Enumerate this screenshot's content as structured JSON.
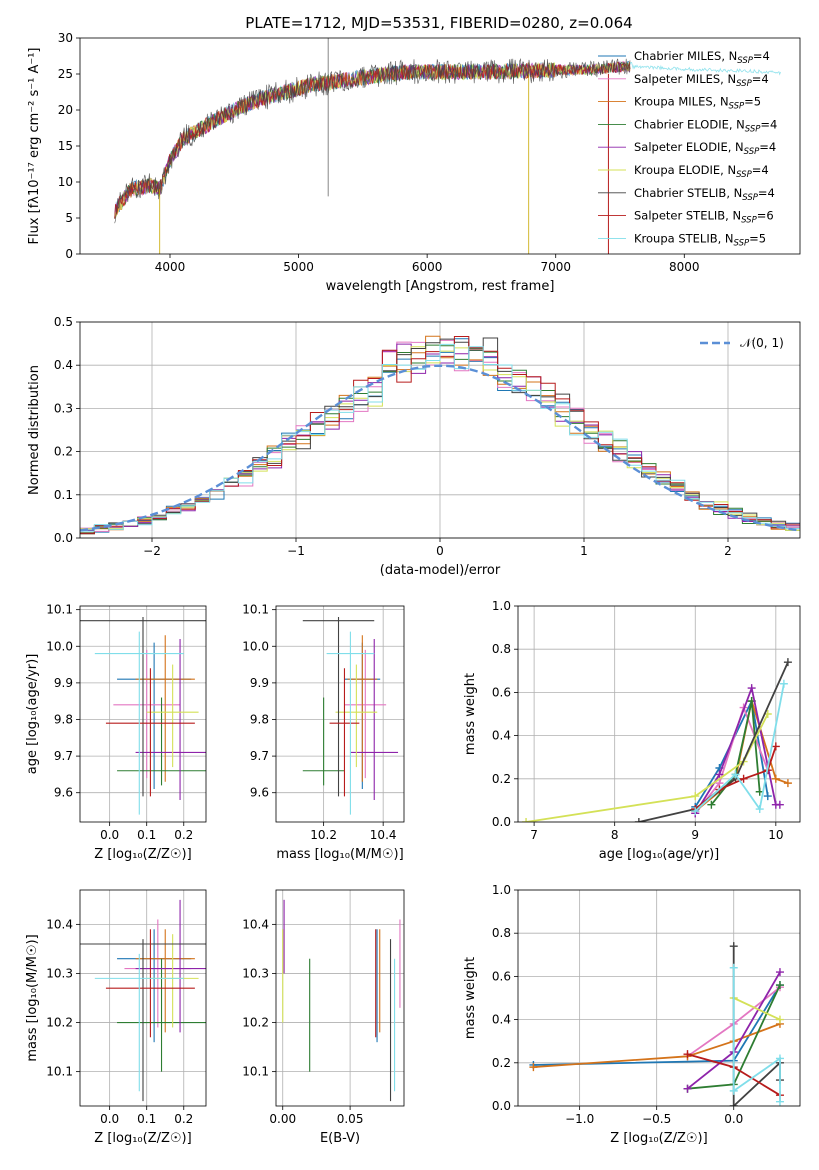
{
  "figure_title": "PLATE=1712, MJD=53531, FIBERID=0280, z=0.064",
  "series": [
    {
      "name": "Chabrier MILES",
      "nssp": "4",
      "color": "#1f77b4"
    },
    {
      "name": "Salpeter MILES",
      "nssp": "4",
      "color": "#e377c2"
    },
    {
      "name": "Kroupa MILES",
      "nssp": "5",
      "color": "#d4731a"
    },
    {
      "name": "Chabrier ELODIE",
      "nssp": "4",
      "color": "#2e7d32"
    },
    {
      "name": "Salpeter ELODIE",
      "nssp": "4",
      "color": "#8e24aa"
    },
    {
      "name": "Kroupa ELODIE",
      "nssp": "4",
      "color": "#d4e157"
    },
    {
      "name": "Chabrier STELIB",
      "nssp": "4",
      "color": "#424242"
    },
    {
      "name": "Salpeter STELIB",
      "nssp": "6",
      "color": "#b71c1c"
    },
    {
      "name": "Kroupa STELIB",
      "nssp": "5",
      "color": "#80deea"
    }
  ],
  "chart_data": [
    {
      "id": "spectrum",
      "type": "line",
      "xlabel": "wavelength [Angstrom, rest frame]",
      "ylabel": "Flux [fλ10⁻¹⁷ erg cm⁻² s⁻¹ A⁻¹]",
      "xlim": [
        3300,
        8900
      ],
      "ylim": [
        0,
        30
      ],
      "xticks": [
        4000,
        5000,
        6000,
        7000,
        8000
      ],
      "yticks": [
        0,
        5,
        10,
        15,
        20,
        25,
        30
      ],
      "grid": false,
      "legend": "upper right",
      "continuum": {
        "x": [
          3570,
          3700,
          3850,
          3920,
          4000,
          4100,
          4300,
          4500,
          4700,
          4900,
          5100,
          5300,
          5500,
          5700,
          5900,
          6100,
          6300,
          6500,
          6700,
          6900,
          7100,
          7300,
          7500,
          7700,
          7900,
          8100,
          8300,
          8500,
          8700
        ],
        "y": [
          6,
          9,
          9.5,
          9,
          13,
          16,
          18,
          20,
          21.5,
          22.5,
          23.5,
          24,
          24.5,
          25,
          25.3,
          25.3,
          25.3,
          25.3,
          25.4,
          25.5,
          25.6,
          25.6,
          26,
          26,
          25.8,
          25.6,
          25.5,
          25.4,
          25.2
        ]
      }
    },
    {
      "id": "residuals",
      "type": "histogram",
      "xlabel": "(data-model)/error",
      "ylabel": "Normed distribution",
      "xlim": [
        -2.5,
        2.5
      ],
      "ylim": [
        0,
        0.5
      ],
      "xticks": [
        -2,
        -1,
        0,
        1,
        2
      ],
      "yticks": [
        0,
        0.1,
        0.2,
        0.3,
        0.4,
        0.5
      ],
      "grid": true,
      "legend": "upper right",
      "reference_curve": {
        "name": "𝒩(0, 1)",
        "mean": 0,
        "sigma": 1,
        "color": "#5b8fd6"
      },
      "bin_width": 0.1
    },
    {
      "id": "age_vs_z",
      "type": "errorbar",
      "xlabel": "Z [log₁₀(Z/Z☉)]",
      "ylabel": "age  [log₁₀(age/yr)]",
      "xlim": [
        -0.08,
        0.26
      ],
      "ylim": [
        9.52,
        10.11
      ],
      "xticks": [
        0.0,
        0.1,
        0.2
      ],
      "yticks": [
        9.6,
        9.7,
        9.8,
        9.9,
        10.0,
        10.1
      ],
      "grid": true,
      "points": [
        {
          "x": 0.12,
          "xerr": 0.1,
          "y": 9.91,
          "yerr": [
            0.3,
            0.1
          ]
        },
        {
          "x": 0.1,
          "xerr": 0.09,
          "y": 9.84,
          "yerr": [
            0.2,
            0.15
          ]
        },
        {
          "x": 0.15,
          "xerr": 0.08,
          "y": 9.91,
          "yerr": [
            0.28,
            0.12
          ]
        },
        {
          "x": 0.14,
          "xerr": 0.12,
          "y": 9.66,
          "yerr": [
            0.04,
            0.2
          ]
        },
        {
          "x": 0.19,
          "xerr": 0.12,
          "y": 9.71,
          "yerr": [
            0.13,
            0.31
          ]
        },
        {
          "x": 0.17,
          "xerr": 0.07,
          "y": 9.82,
          "yerr": [
            0.15,
            0.13
          ]
        },
        {
          "x": 0.09,
          "xerr": 0.17,
          "y": 10.07,
          "yerr": [
            0.48,
            0.01
          ]
        },
        {
          "x": 0.11,
          "xerr": 0.12,
          "y": 9.79,
          "yerr": [
            0.2,
            0.15
          ]
        },
        {
          "x": 0.08,
          "xerr": 0.12,
          "y": 9.98,
          "yerr": [
            0.44,
            0.06
          ]
        }
      ]
    },
    {
      "id": "age_vs_mass",
      "type": "errorbar",
      "xlabel": "mass [log₁₀(M/M☉)]",
      "ylabel": "",
      "xlim": [
        10.04,
        10.47
      ],
      "ylim": [
        9.52,
        10.11
      ],
      "xticks": [
        10.2,
        10.4
      ],
      "yticks": [
        9.6,
        9.7,
        9.8,
        9.9,
        10.0,
        10.1
      ],
      "grid": true,
      "points": [
        {
          "x": 10.33,
          "xerr": 0.06,
          "y": 9.91,
          "yerr": [
            0.3,
            0.1
          ]
        },
        {
          "x": 10.34,
          "xerr": 0.07,
          "y": 9.84,
          "yerr": [
            0.2,
            0.15
          ]
        },
        {
          "x": 10.33,
          "xerr": 0.05,
          "y": 9.91,
          "yerr": [
            0.28,
            0.12
          ]
        },
        {
          "x": 10.2,
          "xerr": 0.07,
          "y": 9.66,
          "yerr": [
            0.04,
            0.2
          ]
        },
        {
          "x": 10.37,
          "xerr": 0.08,
          "y": 9.71,
          "yerr": [
            0.13,
            0.31
          ]
        },
        {
          "x": 10.31,
          "xerr": 0.07,
          "y": 9.82,
          "yerr": [
            0.15,
            0.13
          ]
        },
        {
          "x": 10.25,
          "xerr": 0.12,
          "y": 10.07,
          "yerr": [
            0.48,
            0.01
          ]
        },
        {
          "x": 10.27,
          "xerr": 0.05,
          "y": 9.79,
          "yerr": [
            0.2,
            0.15
          ]
        },
        {
          "x": 10.29,
          "xerr": 0.08,
          "y": 9.98,
          "yerr": [
            0.44,
            0.06
          ]
        }
      ]
    },
    {
      "id": "mass_weight_vs_age",
      "type": "line",
      "xlabel": "age  [log₁₀(age/yr)]",
      "ylabel": "mass weight",
      "xlim": [
        6.8,
        10.3
      ],
      "ylim": [
        0,
        1
      ],
      "xticks": [
        7,
        8,
        9,
        10
      ],
      "yticks": [
        0.0,
        0.2,
        0.4,
        0.6,
        0.8,
        1.0
      ],
      "grid": true,
      "series": [
        {
          "x": [
            9.0,
            9.3,
            9.7,
            9.9
          ],
          "y": [
            0.07,
            0.25,
            0.56,
            0.12
          ]
        },
        {
          "x": [
            9.0,
            9.3,
            9.6,
            9.9
          ],
          "y": [
            0.04,
            0.18,
            0.53,
            0.24
          ]
        },
        {
          "x": [
            9.0,
            9.5,
            9.7,
            10.0,
            10.15
          ],
          "y": [
            0.05,
            0.2,
            0.56,
            0.2,
            0.18
          ]
        },
        {
          "x": [
            9.2,
            9.5,
            9.7,
            9.8
          ],
          "y": [
            0.08,
            0.22,
            0.56,
            0.14
          ]
        },
        {
          "x": [
            9.0,
            9.3,
            9.7,
            10.0,
            10.05
          ],
          "y": [
            0.04,
            0.22,
            0.62,
            0.08,
            0.08
          ]
        },
        {
          "x": [
            6.9,
            9.0,
            9.6,
            9.9
          ],
          "y": [
            0.0,
            0.12,
            0.28,
            0.5
          ]
        },
        {
          "x": [
            8.3,
            9.0,
            9.5,
            10.15
          ],
          "y": [
            0.0,
            0.06,
            0.2,
            0.74
          ]
        },
        {
          "x": [
            9.0,
            9.3,
            9.6,
            9.9,
            10.0
          ],
          "y": [
            0.06,
            0.15,
            0.2,
            0.24,
            0.35
          ]
        },
        {
          "x": [
            9.0,
            9.5,
            9.8,
            10.1
          ],
          "y": [
            0.05,
            0.22,
            0.06,
            0.64
          ]
        }
      ]
    },
    {
      "id": "mass_vs_z",
      "type": "errorbar",
      "xlabel": "Z [log₁₀(Z/Z☉)]",
      "ylabel": "mass [log₁₀(M/M☉)]",
      "xlim": [
        -0.08,
        0.26
      ],
      "ylim": [
        10.03,
        10.47
      ],
      "xticks": [
        0.0,
        0.1,
        0.2
      ],
      "yticks": [
        10.1,
        10.2,
        10.3,
        10.4
      ],
      "grid": true,
      "points": [
        {
          "x": 0.12,
          "xerr": 0.1,
          "y": 10.33,
          "yerr": [
            0.17,
            0.06
          ]
        },
        {
          "x": 0.13,
          "xerr": 0.09,
          "y": 10.31,
          "yerr": [
            0.12,
            0.1
          ]
        },
        {
          "x": 0.15,
          "xerr": 0.08,
          "y": 10.33,
          "yerr": [
            0.15,
            0.06
          ]
        },
        {
          "x": 0.14,
          "xerr": 0.12,
          "y": 10.2,
          "yerr": [
            0.1,
            0.13
          ]
        },
        {
          "x": 0.19,
          "xerr": 0.12,
          "y": 10.31,
          "yerr": [
            0.13,
            0.14
          ]
        },
        {
          "x": 0.17,
          "xerr": 0.07,
          "y": 10.29,
          "yerr": [
            0.1,
            0.09
          ]
        },
        {
          "x": 0.09,
          "xerr": 0.17,
          "y": 10.36,
          "yerr": [
            0.32,
            0.01
          ]
        },
        {
          "x": 0.11,
          "xerr": 0.12,
          "y": 10.27,
          "yerr": [
            0.1,
            0.12
          ]
        },
        {
          "x": 0.08,
          "xerr": 0.12,
          "y": 10.29,
          "yerr": [
            0.23,
            0.05
          ]
        }
      ]
    },
    {
      "id": "mass_vs_ebv",
      "type": "errorbar",
      "xlabel": "E(B-V)",
      "ylabel": "",
      "xlim": [
        -0.005,
        0.09
      ],
      "ylim": [
        10.03,
        10.47
      ],
      "xticks": [
        0.0,
        0.05
      ],
      "yticks": [
        10.1,
        10.2,
        10.3,
        10.4
      ],
      "grid": true,
      "points": [
        {
          "x": 0.07,
          "y": 10.33,
          "yerr": [
            0.17,
            0.06
          ]
        },
        {
          "x": 0.087,
          "y": 10.31,
          "yerr": [
            0.08,
            0.1
          ]
        },
        {
          "x": 0.072,
          "y": 10.33,
          "yerr": [
            0.15,
            0.06
          ]
        },
        {
          "x": 0.02,
          "y": 10.2,
          "yerr": [
            0.1,
            0.13
          ]
        },
        {
          "x": 0.001,
          "y": 10.4,
          "yerr": [
            0.1,
            0.05
          ]
        },
        {
          "x": 0.0,
          "y": 10.3,
          "yerr": [
            0.1,
            0.09
          ]
        },
        {
          "x": 0.08,
          "y": 10.25,
          "yerr": [
            0.21,
            0.12
          ]
        },
        {
          "x": 0.069,
          "y": 10.27,
          "yerr": [
            0.1,
            0.12
          ]
        },
        {
          "x": 0.083,
          "y": 10.2,
          "yerr": [
            0.14,
            0.13
          ]
        }
      ]
    },
    {
      "id": "mass_weight_vs_z",
      "type": "line",
      "xlabel": "Z [log₁₀(Z/Z☉)]",
      "ylabel": "mass weight",
      "xlim": [
        -1.4,
        0.43
      ],
      "ylim": [
        0,
        1
      ],
      "xticks": [
        -1.0,
        -0.5,
        0.0
      ],
      "yticks": [
        0.0,
        0.2,
        0.4,
        0.6,
        0.8,
        1.0
      ],
      "grid": true,
      "series": [
        {
          "x": [
            -1.3,
            0.0,
            0.3
          ],
          "y": [
            0.19,
            0.21,
            0.56
          ]
        },
        {
          "x": [
            -0.3,
            0.0,
            0.3
          ],
          "y": [
            0.23,
            0.38,
            0.55
          ]
        },
        {
          "x": [
            -1.3,
            -0.3,
            0.0,
            0.3
          ],
          "y": [
            0.18,
            0.23,
            0.3,
            0.38
          ]
        },
        {
          "x": [
            -0.3,
            0.0,
            0.3
          ],
          "y": [
            0.08,
            0.1,
            0.56
          ]
        },
        {
          "x": [
            -0.3,
            0.0,
            0.3
          ],
          "y": [
            0.08,
            0.25,
            0.62
          ]
        },
        {
          "x": [
            0.0,
            0.3
          ],
          "y": [
            0.5,
            0.4
          ]
        },
        {
          "x": [
            0.0,
            0.0,
            0.3,
            0.3
          ],
          "y": [
            0.74,
            0.0,
            0.2,
            0.12
          ]
        },
        {
          "x": [
            -0.3,
            0.0,
            0.3
          ],
          "y": [
            0.24,
            0.18,
            0.05
          ]
        },
        {
          "x": [
            0.0,
            0.0,
            0.3,
            0.3
          ],
          "y": [
            0.64,
            0.07,
            0.22,
            0.02
          ]
        }
      ]
    }
  ]
}
